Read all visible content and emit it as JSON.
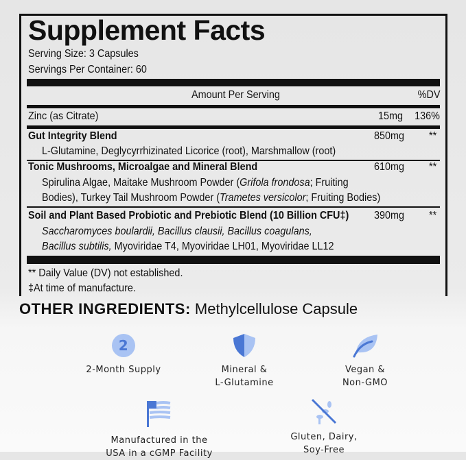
{
  "panel": {
    "title": "Supplement Facts",
    "serving_size": "Serving Size: 3 Capsules",
    "servings_per_container": "Servings Per Container: 60",
    "header": {
      "amount": "Amount Per Serving",
      "dv": "%DV"
    },
    "zinc": {
      "name": "Zinc (as Citrate)",
      "amount": "15mg",
      "dv": "136%"
    },
    "blends": [
      {
        "name": "Gut Integrity Blend",
        "amount": "850mg",
        "dv": "**",
        "lines": [
          "L-Glutamine, Deglycyrrhizinated Licorice (root), Marshmallow (root)"
        ]
      },
      {
        "name": "Tonic Mushrooms, Microalgae and Mineral Blend",
        "amount": "610mg",
        "dv": "**",
        "line1_a": "Spirulina Algae, Maitake Mushroom Powder (",
        "line1_i": "Grifola frondosa",
        "line1_b": "; Fruiting",
        "line2_a": "Bodies), Turkey Tail Mushroom Powder (",
        "line2_i": "Trametes versicolor",
        "line2_b": "; Fruiting Bodies)"
      },
      {
        "name": "Soil and Plant Based Probiotic and Prebiotic Blend (10 Billion CFU‡)",
        "amount": "390mg",
        "dv": "**",
        "line1_i": "Saccharomyces boulardii, Bacillus clausii, Bacillus coagulans,",
        "line2_i": "Bacillus subtilis,",
        "line2_b": " Myoviridae T4, Myoviridae LH01, Myoviridae LL12"
      }
    ],
    "footnotes": [
      "** Daily Value (DV) not established.",
      "‡At time of manufacture."
    ]
  },
  "other_ingredients": {
    "label": "OTHER INGREDIENTS:",
    "value": " Methylcellulose Capsule"
  },
  "features": [
    {
      "icon": "number-2-icon",
      "icon_text": "2",
      "line1": "2-Month Supply",
      "line2": ""
    },
    {
      "icon": "shield-icon",
      "line1": "Mineral &",
      "line2": "L-Glutamine"
    },
    {
      "icon": "leaf-icon",
      "line1": "Vegan &",
      "line2": "Non-GMO"
    },
    {
      "icon": "usa-flag-icon",
      "line1": "Manufactured in the",
      "line2": "USA in a cGMP Facility"
    },
    {
      "icon": "no-gluten-icon",
      "line1": "Gluten, Dairy,",
      "line2": "Soy-Free"
    }
  ],
  "colors": {
    "icon_light": "#a9c3f3",
    "icon_dark": "#4a77d4"
  }
}
